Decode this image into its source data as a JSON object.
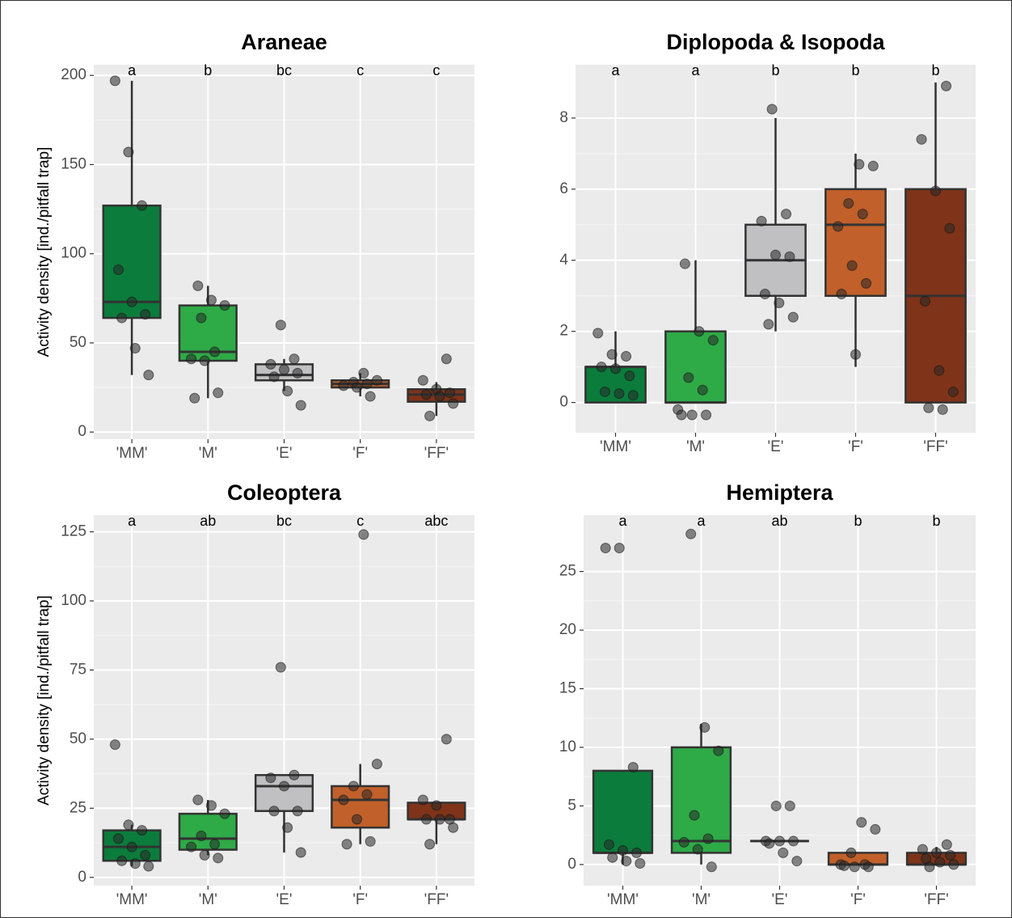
{
  "chart_data": [
    {
      "type": "box",
      "title": "Araneae",
      "ylabel": "Activity density [ind./pitfall trap]",
      "categories": [
        "'MM'",
        "'M'",
        "'E'",
        "'F'",
        "'FF'"
      ],
      "colors": [
        "#0b7c3c",
        "#2eaa47",
        "#c0bfc1",
        "#c1602a",
        "#7f3318"
      ],
      "boxes": {
        "whislo": [
          32,
          19,
          23,
          20,
          9
        ],
        "q1": [
          64,
          40,
          29,
          25,
          17
        ],
        "median": [
          73,
          45,
          32,
          27,
          21
        ],
        "q3": [
          127,
          71,
          38,
          29,
          24
        ],
        "whishi": [
          197,
          82,
          41,
          33,
          28
        ]
      },
      "points": [
        [
          197,
          157,
          127,
          91,
          73,
          66,
          64,
          47,
          32
        ],
        [
          82,
          74,
          71,
          64,
          45,
          41,
          40,
          22,
          19
        ],
        [
          60,
          41,
          38,
          35,
          33,
          31,
          23,
          15
        ],
        [
          33,
          29,
          28,
          27,
          26,
          25,
          20
        ],
        [
          41,
          29,
          24,
          22,
          21,
          20,
          16,
          9
        ]
      ],
      "letters": [
        "a",
        "b",
        "bc",
        "c",
        "c"
      ],
      "ylim": [
        -4,
        206
      ],
      "yticks": [
        0,
        50,
        100,
        150,
        200
      ],
      "grid": true
    },
    {
      "type": "box",
      "title": "Diplopoda & Isopoda",
      "categories": [
        "'MM'",
        "'M'",
        "'E'",
        "'F'",
        "'FF'"
      ],
      "colors": [
        "#0b7c3c",
        "#2eaa47",
        "#c0bfc1",
        "#c1602a",
        "#7f3318"
      ],
      "boxes": {
        "whislo": [
          0,
          0,
          2,
          1,
          0
        ],
        "q1": [
          0,
          0,
          3,
          3,
          0
        ],
        "median": [
          1,
          0,
          4,
          5,
          3
        ],
        "q3": [
          1,
          2,
          5,
          6,
          6
        ],
        "whishi": [
          2,
          4,
          8,
          7,
          9
        ]
      },
      "points": [
        [
          1.95,
          1.35,
          1.3,
          1.0,
          0.95,
          0.75,
          0.3,
          0.25,
          0.2
        ],
        [
          3.9,
          2.0,
          1.75,
          0.7,
          0.35,
          -0.2,
          -0.35,
          -0.35,
          -0.35
        ],
        [
          8.25,
          5.3,
          5.1,
          4.15,
          4.1,
          3.05,
          2.8,
          2.4,
          2.2
        ],
        [
          6.7,
          6.65,
          5.6,
          5.3,
          4.95,
          3.85,
          3.35,
          3.05,
          1.35
        ],
        [
          8.9,
          7.4,
          5.95,
          4.9,
          2.85,
          0.9,
          0.3,
          -0.15,
          -0.2
        ]
      ],
      "letters": [
        "a",
        "a",
        "b",
        "b",
        "b"
      ],
      "ylim": [
        -0.85,
        9.5
      ],
      "yticks": [
        0,
        2,
        4,
        6,
        8
      ],
      "grid": true
    },
    {
      "type": "box",
      "title": "Coleoptera",
      "ylabel": "Activity density [ind./pitfall trap]",
      "categories": [
        "'MM'",
        "'M'",
        "'E'",
        "'F'",
        "'FF'"
      ],
      "colors": [
        "#0b7c3c",
        "#2eaa47",
        "#c0bfc1",
        "#c1602a",
        "#7f3318"
      ],
      "boxes": {
        "whislo": [
          4,
          8,
          9,
          12,
          12
        ],
        "q1": [
          6,
          10,
          24,
          18,
          21
        ],
        "median": [
          11,
          14,
          33,
          28,
          21
        ],
        "q3": [
          17,
          23,
          37,
          33,
          27
        ],
        "whishi": [
          19,
          28,
          37,
          41,
          27
        ]
      },
      "points": [
        [
          48,
          19,
          17,
          14,
          11,
          8,
          6,
          5,
          4
        ],
        [
          28,
          26,
          23,
          15,
          12,
          11,
          8,
          7
        ],
        [
          76,
          37,
          36,
          33,
          24,
          24,
          18,
          9
        ],
        [
          124,
          41,
          33,
          30,
          28,
          21,
          13,
          12
        ],
        [
          50,
          28,
          26,
          21,
          21,
          21,
          18,
          12
        ]
      ],
      "letters": [
        "a",
        "ab",
        "bc",
        "c",
        "abc"
      ],
      "ylim": [
        -3,
        131
      ],
      "yticks": [
        0,
        25,
        50,
        75,
        100,
        125
      ],
      "grid": true
    },
    {
      "type": "box",
      "title": "Hemiptera",
      "categories": [
        "'MM'",
        "'M'",
        "'E'",
        "'F'",
        "'FF'"
      ],
      "colors": [
        "#0b7c3c",
        "#2eaa47",
        "#c0bfc1",
        "#c1602a",
        "#7f3318"
      ],
      "boxes": {
        "whislo": [
          0,
          0,
          2,
          0,
          0
        ],
        "q1": [
          1,
          1,
          2,
          0,
          0
        ],
        "median": [
          1,
          2,
          2,
          0,
          0
        ],
        "q3": [
          8,
          10,
          2,
          1,
          1
        ],
        "whishi": [
          8,
          12,
          2,
          1,
          1.5
        ]
      },
      "points": [
        [
          27,
          27,
          8.3,
          1.7,
          1.2,
          1,
          0.6,
          0.3,
          0.1
        ],
        [
          28.2,
          11.7,
          9.7,
          4.2,
          2.2,
          1.9,
          1.3,
          -0.2
        ],
        [
          5,
          5,
          2,
          2,
          2,
          1.8,
          1,
          0.3
        ],
        [
          3.6,
          3,
          1,
          0,
          0,
          -0.2,
          -0.2,
          -0.1
        ],
        [
          1.7,
          1.3,
          1,
          0.8,
          0.5,
          0.2,
          0,
          -0.2
        ]
      ],
      "letters": [
        "a",
        "a",
        "ab",
        "b",
        "b"
      ],
      "ylim": [
        -1.8,
        29.8
      ],
      "yticks": [
        0,
        5,
        10,
        15,
        20,
        25
      ],
      "grid": true
    }
  ]
}
